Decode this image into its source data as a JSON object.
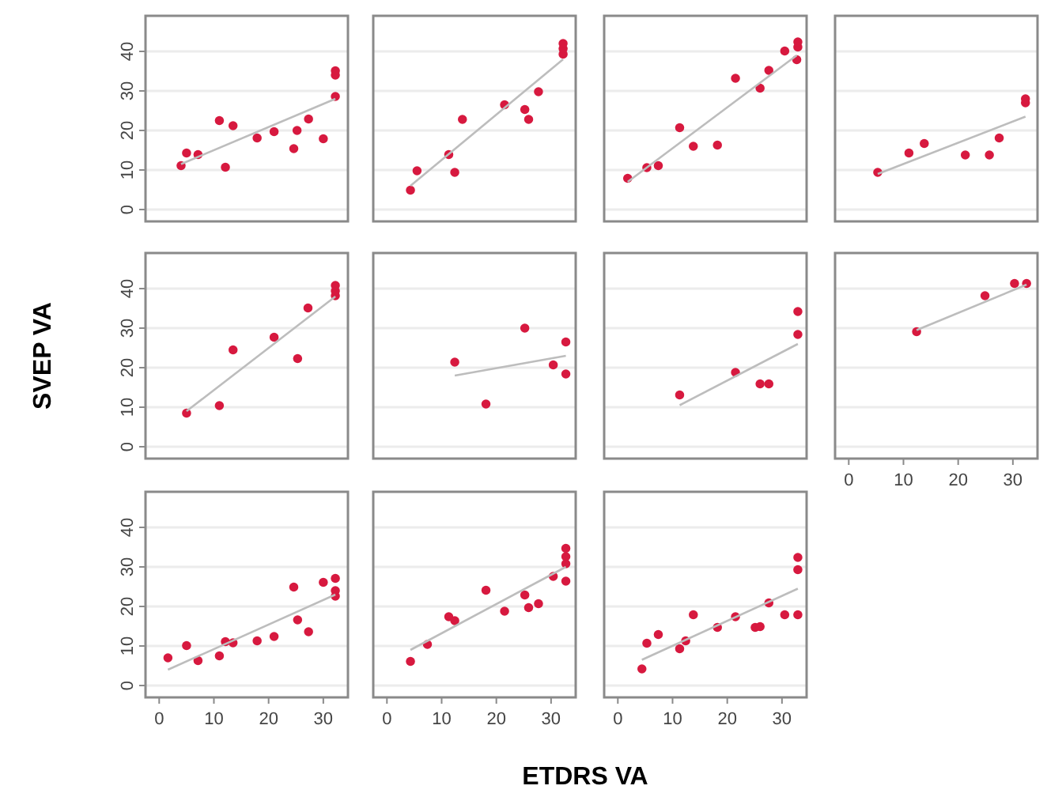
{
  "chart_data": [
    {
      "type": "scatter",
      "xlim": [
        -2.5,
        34.5
      ],
      "ylim": [
        -3,
        49
      ],
      "yticks": [
        0,
        10,
        20,
        30,
        40
      ],
      "grid": "y",
      "tick_labels": "y",
      "series": [
        {
          "color": "#d7193f",
          "marker": "circle",
          "x": [
            4.0,
            5.0,
            7.1,
            11.0,
            12.1,
            13.5,
            17.9,
            21.0,
            24.6,
            25.2,
            27.3,
            30.0,
            32.2,
            32.2,
            32.2
          ],
          "values": [
            11.1,
            14.3,
            13.9,
            22.5,
            10.7,
            21.2,
            18.1,
            19.7,
            15.4,
            20.0,
            22.9,
            17.9,
            28.6,
            34.0,
            35.1
          ]
        },
        {
          "type": "line",
          "color": "#bdbdbd",
          "x": [
            4.0,
            32.2
          ],
          "values": [
            11.5,
            28
          ]
        }
      ]
    },
    {
      "type": "scatter",
      "xlim": [
        -2.5,
        34.5
      ],
      "ylim": [
        -3,
        49
      ],
      "yticks": [
        0,
        10,
        20,
        30,
        40
      ],
      "grid": "y",
      "tick_labels": false,
      "series": [
        {
          "color": "#d7193f",
          "marker": "circle",
          "x": [
            4.3,
            5.5,
            11.3,
            12.4,
            13.8,
            21.5,
            25.2,
            25.9,
            27.7,
            32.2,
            32.2,
            32.2
          ],
          "values": [
            4.9,
            9.8,
            13.9,
            9.4,
            22.8,
            26.5,
            25.3,
            22.8,
            29.8,
            39.3,
            40.7,
            42.0
          ]
        },
        {
          "type": "line",
          "color": "#bdbdbd",
          "x": [
            4.3,
            32.2
          ],
          "values": [
            6,
            38
          ]
        }
      ]
    },
    {
      "type": "scatter",
      "xlim": [
        -2.5,
        34.5
      ],
      "ylim": [
        -3,
        49
      ],
      "yticks": [
        0,
        10,
        20,
        30,
        40
      ],
      "grid": "y",
      "tick_labels": false,
      "series": [
        {
          "color": "#d7193f",
          "marker": "circle",
          "x": [
            1.8,
            5.3,
            7.4,
            11.3,
            13.8,
            18.2,
            21.5,
            26.0,
            27.6,
            30.5,
            32.7,
            32.9,
            32.9
          ],
          "values": [
            7.9,
            10.6,
            11.1,
            20.7,
            16.0,
            16.3,
            33.2,
            30.7,
            35.2,
            40.1,
            37.9,
            41.1,
            42.4
          ]
        },
        {
          "type": "line",
          "color": "#bdbdbd",
          "x": [
            1.8,
            32.7
          ],
          "values": [
            7,
            39
          ]
        }
      ]
    },
    {
      "type": "scatter",
      "xlim": [
        -2.5,
        34.5
      ],
      "ylim": [
        -3,
        49
      ],
      "yticks": [
        0,
        10,
        20,
        30,
        40
      ],
      "grid": "y",
      "tick_labels": false,
      "series": [
        {
          "color": "#d7193f",
          "marker": "circle",
          "x": [
            5.3,
            11.0,
            13.8,
            21.3,
            25.7,
            27.5,
            32.3,
            32.3
          ],
          "values": [
            9.4,
            14.3,
            16.7,
            13.8,
            13.8,
            18.1,
            27.0,
            28.0
          ]
        },
        {
          "type": "line",
          "color": "#bdbdbd",
          "x": [
            5.3,
            32.3
          ],
          "values": [
            9,
            23.5
          ]
        }
      ]
    },
    {
      "type": "scatter",
      "xlim": [
        -2.5,
        34.5
      ],
      "ylim": [
        -3,
        49
      ],
      "yticks": [
        0,
        10,
        20,
        30,
        40
      ],
      "grid": "y",
      "tick_labels": "y",
      "ylabel": "SVEP VA",
      "series": [
        {
          "color": "#d7193f",
          "marker": "circle",
          "x": [
            5.0,
            11.0,
            13.5,
            21.0,
            25.3,
            27.2,
            32.2,
            32.2,
            32.2
          ],
          "values": [
            8.5,
            10.4,
            24.5,
            27.7,
            22.3,
            35.1,
            38.2,
            39.4,
            40.8
          ]
        },
        {
          "type": "line",
          "color": "#bdbdbd",
          "x": [
            5.0,
            32.2
          ],
          "values": [
            9,
            38
          ]
        }
      ]
    },
    {
      "type": "scatter",
      "xlim": [
        -2.5,
        34.5
      ],
      "ylim": [
        -3,
        49
      ],
      "yticks": [
        0,
        10,
        20,
        30,
        40
      ],
      "grid": "y",
      "tick_labels": false,
      "series": [
        {
          "color": "#d7193f",
          "marker": "circle",
          "x": [
            12.4,
            18.1,
            25.2,
            30.4,
            32.7,
            32.7
          ],
          "values": [
            21.4,
            10.8,
            30.0,
            20.7,
            26.5,
            18.4
          ]
        },
        {
          "type": "line",
          "color": "#bdbdbd",
          "x": [
            12.4,
            32.7
          ],
          "values": [
            18,
            23
          ]
        }
      ]
    },
    {
      "type": "scatter",
      "xlim": [
        -2.5,
        34.5
      ],
      "ylim": [
        -3,
        49
      ],
      "yticks": [
        0,
        10,
        20,
        30,
        40
      ],
      "grid": "y",
      "tick_labels": false,
      "series": [
        {
          "color": "#d7193f",
          "marker": "circle",
          "x": [
            11.3,
            21.5,
            26.0,
            27.6,
            32.9,
            32.9
          ],
          "values": [
            13.1,
            18.8,
            15.9,
            15.9,
            28.4,
            34.2
          ]
        },
        {
          "type": "line",
          "color": "#bdbdbd",
          "x": [
            11.3,
            32.9
          ],
          "values": [
            10.5,
            26
          ]
        }
      ]
    },
    {
      "type": "scatter",
      "xlim": [
        -2.5,
        34.5
      ],
      "ylim": [
        -3,
        49
      ],
      "xticks": [
        0,
        10,
        20,
        30
      ],
      "yticks": [
        0,
        10,
        20,
        30,
        40
      ],
      "grid": "y",
      "tick_labels": "x",
      "series": [
        {
          "color": "#d7193f",
          "marker": "circle",
          "x": [
            12.4,
            24.9,
            30.3,
            32.5
          ],
          "values": [
            29.1,
            38.2,
            41.3,
            41.3
          ]
        },
        {
          "type": "line",
          "color": "#bdbdbd",
          "x": [
            12.4,
            32.5
          ],
          "values": [
            29.5,
            41
          ]
        }
      ]
    },
    {
      "type": "scatter",
      "xlim": [
        -2.5,
        34.5
      ],
      "ylim": [
        -3,
        49
      ],
      "xticks": [
        0,
        10,
        20,
        30
      ],
      "yticks": [
        0,
        10,
        20,
        30,
        40
      ],
      "grid": "y",
      "series": [
        {
          "color": "#d7193f",
          "marker": "circle",
          "x": [
            1.6,
            5.0,
            7.1,
            11.0,
            12.1,
            13.5,
            17.9,
            21.0,
            24.6,
            25.3,
            27.3,
            30.0,
            32.2,
            32.2,
            32.2
          ],
          "values": [
            7.0,
            10.1,
            6.3,
            7.5,
            11.1,
            10.8,
            11.3,
            12.4,
            24.9,
            16.6,
            13.6,
            26.1,
            27.1,
            24.0,
            22.6
          ]
        },
        {
          "type": "line",
          "color": "#bdbdbd",
          "x": [
            1.6,
            32.2
          ],
          "values": [
            4,
            23
          ]
        }
      ]
    },
    {
      "type": "scatter",
      "xlim": [
        -2.5,
        34.5
      ],
      "ylim": [
        -3,
        49
      ],
      "xticks": [
        0,
        10,
        20,
        30
      ],
      "yticks": [
        0,
        10,
        20,
        30,
        40
      ],
      "grid": "y",
      "tick_labels": "x",
      "xlabel": "ETDRS VA",
      "series": [
        {
          "color": "#d7193f",
          "marker": "circle",
          "x": [
            4.3,
            7.4,
            11.3,
            12.4,
            18.1,
            21.5,
            25.2,
            25.9,
            27.7,
            30.4,
            32.7,
            32.7,
            32.7,
            32.7
          ],
          "values": [
            6.1,
            10.4,
            17.4,
            16.4,
            24.1,
            18.8,
            22.9,
            19.7,
            20.7,
            27.6,
            26.4,
            30.8,
            34.7,
            32.6
          ]
        },
        {
          "type": "line",
          "color": "#bdbdbd",
          "x": [
            4.3,
            32.7
          ],
          "values": [
            9,
            30
          ]
        }
      ]
    },
    {
      "type": "scatter",
      "xlim": [
        -2.5,
        34.5
      ],
      "ylim": [
        -3,
        49
      ],
      "xticks": [
        0,
        10,
        20,
        30
      ],
      "yticks": [
        0,
        10,
        20,
        30,
        40
      ],
      "grid": "y",
      "tick_labels": "x",
      "series": [
        {
          "color": "#d7193f",
          "marker": "circle",
          "x": [
            4.4,
            5.3,
            7.4,
            11.3,
            12.4,
            13.8,
            18.2,
            21.5,
            25.1,
            26.0,
            27.6,
            30.5,
            32.9,
            32.9,
            32.9
          ],
          "values": [
            4.2,
            10.7,
            12.9,
            9.3,
            11.3,
            17.9,
            14.7,
            17.4,
            14.7,
            14.9,
            20.9,
            17.9,
            17.9,
            29.3,
            32.4
          ]
        },
        {
          "type": "line",
          "color": "#bdbdbd",
          "x": [
            4.4,
            32.9
          ],
          "values": [
            6.5,
            24.5
          ]
        }
      ]
    }
  ]
}
